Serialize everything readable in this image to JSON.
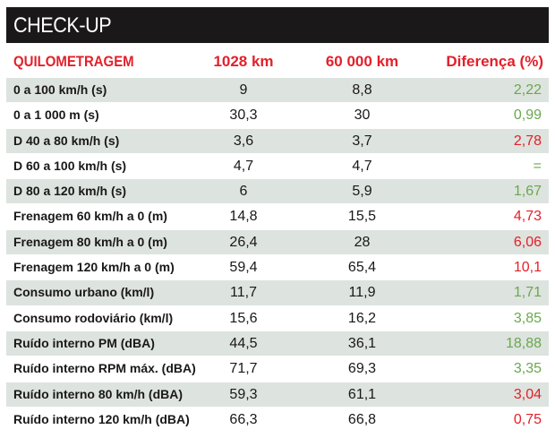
{
  "title": "CHECK-UP",
  "colors": {
    "title_bg": "#1a1818",
    "accent_red": "#e3202a",
    "accent_green": "#6aa84f",
    "row_shade": "#dde3de"
  },
  "columns": [
    "QUILOMETRAGEM",
    "1028 km",
    "60 000 km",
    "Diferença (%)"
  ],
  "rows": [
    {
      "label": "0 a 100 km/h (s)",
      "v1": "9",
      "v2": "8,8",
      "diff": "2,22",
      "status": "green"
    },
    {
      "label": "0 a 1 000 m (s)",
      "v1": "30,3",
      "v2": "30",
      "diff": "0,99",
      "status": "green"
    },
    {
      "label": "D 40 a 80 km/h (s)",
      "v1": "3,6",
      "v2": "3,7",
      "diff": "2,78",
      "status": "red"
    },
    {
      "label": "D 60 a 100 km/h (s)",
      "v1": "4,7",
      "v2": "4,7",
      "diff": "=",
      "status": "green"
    },
    {
      "label": "D 80 a 120 km/h (s)",
      "v1": "6",
      "v2": "5,9",
      "diff": "1,67",
      "status": "green"
    },
    {
      "label": "Frenagem 60 km/h a 0 (m)",
      "v1": "14,8",
      "v2": "15,5",
      "diff": "4,73",
      "status": "red"
    },
    {
      "label": "Frenagem 80 km/h a 0 (m)",
      "v1": "26,4",
      "v2": "28",
      "diff": "6,06",
      "status": "red"
    },
    {
      "label": "Frenagem 120 km/h a 0 (m)",
      "v1": "59,4",
      "v2": "65,4",
      "diff": "10,1",
      "status": "red"
    },
    {
      "label": "Consumo urbano (km/l)",
      "v1": "11,7",
      "v2": "11,9",
      "diff": "1,71",
      "status": "green"
    },
    {
      "label": "Consumo rodoviário (km/l)",
      "v1": "15,6",
      "v2": "16,2",
      "diff": "3,85",
      "status": "green"
    },
    {
      "label": "Ruído interno PM (dBA)",
      "v1": "44,5",
      "v2": "36,1",
      "diff": "18,88",
      "status": "green"
    },
    {
      "label": "Ruído interno RPM máx. (dBA)",
      "v1": "71,7",
      "v2": "69,3",
      "diff": "3,35",
      "status": "green"
    },
    {
      "label": "Ruído interno 80 km/h (dBA)",
      "v1": "59,3",
      "v2": "61,1",
      "diff": "3,04",
      "status": "red"
    },
    {
      "label": "Ruído interno 120 km/h (dBA)",
      "v1": "66,3",
      "v2": "66,8",
      "diff": "0,75",
      "status": "red"
    }
  ]
}
